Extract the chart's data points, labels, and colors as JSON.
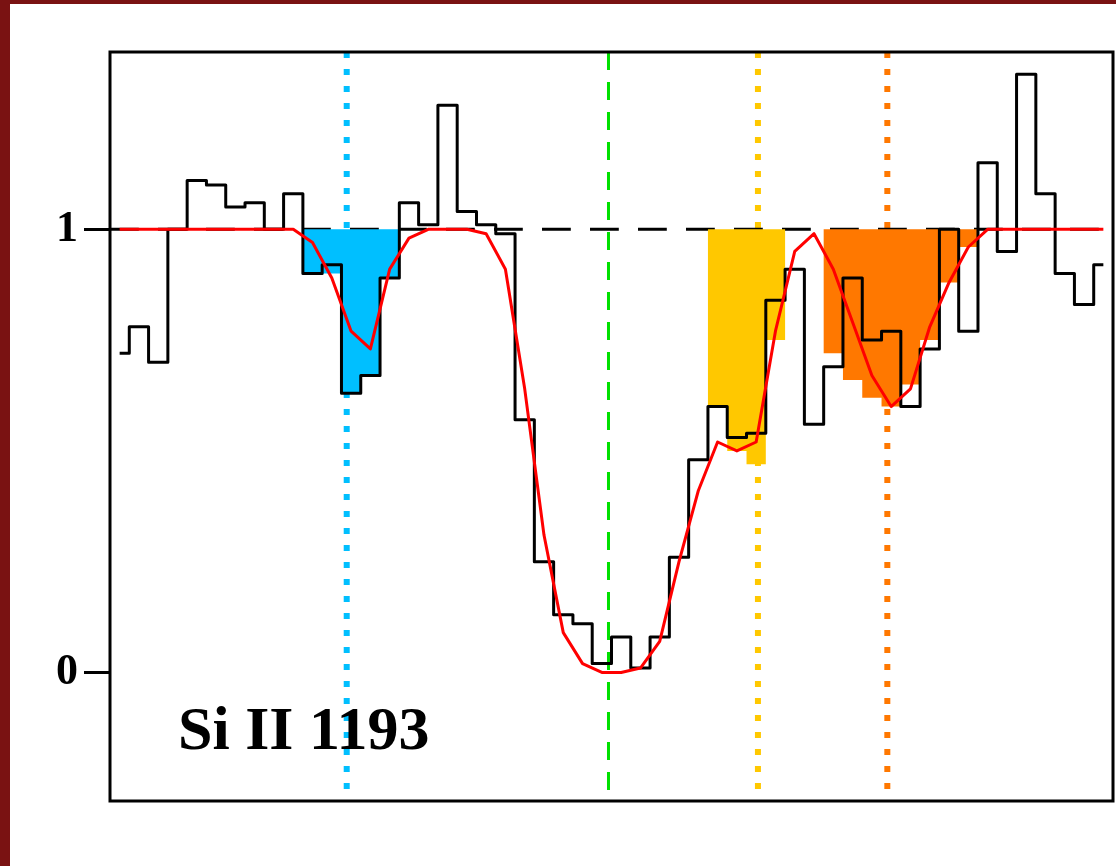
{
  "chart_data": {
    "type": "step",
    "annotations": [
      "Si II 1193"
    ],
    "categories": [
      null,
      null,
      null,
      null,
      null,
      null,
      null,
      null,
      null,
      null,
      null,
      null,
      null,
      null,
      null,
      null,
      null,
      null,
      null,
      null,
      null,
      null,
      null,
      null,
      null,
      null,
      null,
      null,
      null,
      null,
      null,
      null,
      null,
      null,
      null,
      null,
      null,
      null,
      null,
      null,
      null,
      null,
      null,
      null,
      null,
      null,
      null,
      null,
      null,
      null,
      null,
      null
    ],
    "ylim": [
      -0.29,
      1.4
    ],
    "yticks": [
      0,
      1
    ],
    "tick_labels": "y",
    "grid": false,
    "legend": false,
    "marker": "none",
    "ref_lines": [
      {
        "axis": "y",
        "value": 1,
        "color": "#000000",
        "line_style": "dashed"
      }
    ],
    "series": [
      {
        "type": "area",
        "color": "#00bfff",
        "values": [
          null,
          null,
          null,
          null,
          null,
          null,
          null,
          null,
          null,
          1,
          0.9,
          0.9,
          0.63,
          0.67,
          0.89,
          1,
          null,
          null,
          null,
          null,
          null,
          null,
          null,
          null,
          null,
          null,
          null,
          null,
          null,
          null,
          null,
          null,
          null,
          null,
          null,
          null,
          null,
          null,
          null,
          null,
          null,
          null,
          null,
          null,
          null,
          null,
          null,
          null,
          null,
          null,
          null,
          null
        ]
      },
      {
        "type": "area",
        "color": "#ffc800",
        "values": [
          null,
          null,
          null,
          null,
          null,
          null,
          null,
          null,
          null,
          null,
          null,
          null,
          null,
          null,
          null,
          null,
          null,
          null,
          null,
          null,
          null,
          null,
          null,
          null,
          null,
          null,
          null,
          null,
          null,
          null,
          1,
          0.6,
          0.5,
          0.47,
          0.75,
          1,
          null,
          null,
          null,
          null,
          null,
          null,
          null,
          null,
          null,
          null,
          null,
          null,
          null,
          null,
          null,
          null
        ]
      },
      {
        "type": "area",
        "color": "#ff7800",
        "values": [
          null,
          null,
          null,
          null,
          null,
          null,
          null,
          null,
          null,
          null,
          null,
          null,
          null,
          null,
          null,
          null,
          null,
          null,
          null,
          null,
          null,
          null,
          null,
          null,
          null,
          null,
          null,
          null,
          null,
          null,
          null,
          null,
          null,
          null,
          null,
          null,
          1,
          0.72,
          0.66,
          0.62,
          0.6,
          0.65,
          0.75,
          0.88,
          0.96,
          1,
          null,
          null,
          null,
          null,
          null,
          null
        ]
      },
      {
        "color": "#000000",
        "values": [
          0.72,
          0.78,
          0.7,
          1.0,
          1.11,
          1.1,
          1.05,
          1.06,
          1.0,
          1.08,
          0.9,
          0.92,
          0.63,
          0.67,
          0.89,
          1.06,
          1.01,
          1.28,
          1.04,
          1.01,
          0.99,
          0.57,
          0.25,
          0.13,
          0.11,
          0.02,
          0.08,
          0.01,
          0.08,
          0.26,
          0.48,
          0.6,
          0.53,
          0.54,
          0.84,
          0.91,
          0.56,
          0.69,
          0.89,
          0.75,
          0.77,
          0.6,
          0.73,
          1.0,
          0.77,
          1.15,
          0.95,
          1.35,
          1.08,
          0.9,
          0.83,
          0.92
        ]
      },
      {
        "type": "line",
        "color": "#ff0000",
        "values": [
          1,
          1,
          1,
          1,
          1,
          1,
          1,
          1,
          1,
          1,
          0.97,
          0.89,
          0.77,
          0.73,
          0.91,
          0.98,
          1,
          1,
          1,
          0.99,
          0.91,
          0.64,
          0.31,
          0.09,
          0.02,
          0,
          0,
          0.01,
          0.07,
          0.25,
          0.41,
          0.52,
          0.5,
          0.52,
          0.77,
          0.95,
          0.99,
          0.91,
          0.79,
          0.67,
          0.6,
          0.64,
          0.78,
          0.88,
          0.96,
          1,
          1,
          1,
          1,
          1,
          1,
          1
        ]
      }
    ]
  }
}
